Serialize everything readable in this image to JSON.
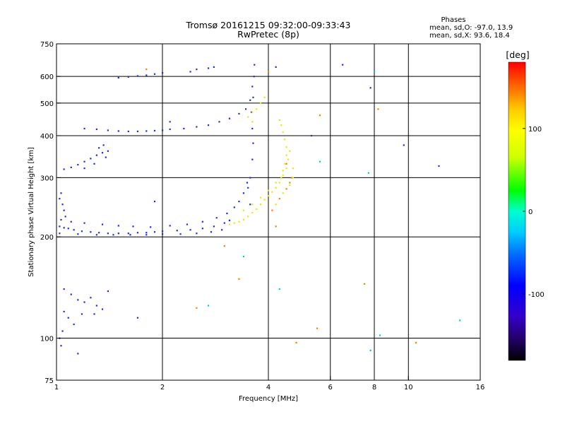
{
  "chart_data": {
    "type": "scatter",
    "title": "Tromsø 20161215 09:32:00-09:33:43",
    "subtitle": "RwPretec (8p)",
    "xlabel": "Frequency [MHz]",
    "ylabel": "Stationary phase Virtual Height [km]",
    "x_scale": "log",
    "y_scale": "log",
    "xlim": [
      1,
      16
    ],
    "ylim": [
      75,
      750
    ],
    "x_ticks": [
      1,
      2,
      4,
      6,
      8,
      10,
      16
    ],
    "x_tick_labels": [
      "1",
      "2",
      "4",
      "6",
      "8",
      "10",
      "16"
    ],
    "y_ticks": [
      75,
      100,
      200,
      300,
      400,
      500,
      600,
      750
    ],
    "y_tick_labels": [
      "75",
      "100",
      "200",
      "300",
      "400",
      "500",
      "600",
      "750"
    ],
    "x_grid": [
      2,
      4,
      6,
      8,
      10
    ],
    "y_grid": [
      100,
      200,
      300,
      400,
      500,
      600
    ],
    "grid": true,
    "stats": {
      "heading": "Phases",
      "line_o": "mean, sd,O: -97.0, 13.9",
      "line_x": "mean, sd,X:  93.6, 18.4"
    },
    "colorbar": {
      "label": "[deg]",
      "range": [
        -180,
        180
      ],
      "ticks": [
        100,
        0,
        -100
      ],
      "tick_labels": [
        "100",
        "0",
        "-100"
      ],
      "colors": [
        "#ff0000",
        "#ff6600",
        "#ffcc00",
        "#ffff00",
        "#ccff00",
        "#00ff00",
        "#00ffcc",
        "#00ccff",
        "#0066ff",
        "#0000ff",
        "#3300cc",
        "#220066",
        "#000000"
      ]
    },
    "series": [
      {
        "phase": -105,
        "color": "#1a2ee0",
        "points": [
          [
            1.02,
            215
          ],
          [
            1.05,
            213
          ],
          [
            1.08,
            212
          ],
          [
            1.12,
            210
          ],
          [
            1.18,
            208
          ],
          [
            1.25,
            207
          ],
          [
            1.32,
            206
          ],
          [
            1.4,
            205
          ],
          [
            1.5,
            205
          ],
          [
            1.6,
            205
          ],
          [
            1.7,
            206
          ],
          [
            1.8,
            206
          ],
          [
            1.9,
            207
          ],
          [
            2.0,
            208
          ],
          [
            2.2,
            209
          ],
          [
            2.4,
            210
          ],
          [
            2.6,
            212
          ],
          [
            2.8,
            215
          ],
          [
            3.0,
            220
          ],
          [
            3.1,
            224
          ],
          [
            1.03,
            225
          ],
          [
            1.1,
            222
          ],
          [
            1.2,
            220
          ],
          [
            1.35,
            218
          ],
          [
            1.5,
            216
          ],
          [
            1.65,
            215
          ],
          [
            1.85,
            214
          ],
          [
            2.1,
            216
          ],
          [
            2.35,
            218
          ],
          [
            2.6,
            222
          ],
          [
            2.85,
            228
          ],
          [
            3.05,
            235
          ],
          [
            3.2,
            245
          ],
          [
            3.3,
            255
          ],
          [
            3.4,
            270
          ],
          [
            3.48,
            290
          ],
          [
            1.02,
            205
          ],
          [
            1.15,
            204
          ],
          [
            1.3,
            203
          ],
          [
            1.45,
            203
          ],
          [
            1.62,
            203
          ],
          [
            1.8,
            203
          ],
          [
            2.0,
            204
          ],
          [
            2.25,
            204
          ],
          [
            2.5,
            205
          ],
          [
            2.75,
            207
          ],
          [
            2.95,
            210
          ],
          [
            1.05,
            318
          ],
          [
            1.1,
            322
          ],
          [
            1.15,
            328
          ],
          [
            1.2,
            335
          ],
          [
            1.25,
            342
          ],
          [
            1.3,
            350
          ],
          [
            1.35,
            356
          ],
          [
            1.4,
            360
          ],
          [
            1.2,
            320
          ],
          [
            1.28,
            330
          ],
          [
            1.38,
            345
          ],
          [
            1.32,
            368
          ],
          [
            1.36,
            375
          ],
          [
            1.2,
            420
          ],
          [
            1.3,
            418
          ],
          [
            1.4,
            415
          ],
          [
            1.5,
            413
          ],
          [
            1.6,
            412
          ],
          [
            1.7,
            412
          ],
          [
            1.8,
            413
          ],
          [
            1.9,
            414
          ],
          [
            2.0,
            415
          ],
          [
            2.1,
            418
          ],
          [
            2.3,
            420
          ],
          [
            2.5,
            425
          ],
          [
            2.7,
            430
          ],
          [
            2.9,
            440
          ],
          [
            3.1,
            450
          ],
          [
            3.3,
            465
          ],
          [
            3.45,
            480
          ],
          [
            3.55,
            510
          ],
          [
            3.6,
            560
          ],
          [
            1.5,
            595
          ],
          [
            1.6,
            598
          ],
          [
            1.7,
            602
          ],
          [
            1.8,
            605
          ],
          [
            1.9,
            610
          ],
          [
            2.0,
            615
          ],
          [
            2.4,
            620
          ],
          [
            2.5,
            630
          ],
          [
            2.7,
            635
          ],
          [
            3.55,
            300
          ],
          [
            3.6,
            340
          ],
          [
            3.62,
            380
          ],
          [
            3.6,
            420
          ],
          [
            3.58,
            470
          ],
          [
            3.62,
            520
          ],
          [
            3.64,
            600
          ],
          [
            3.65,
            650
          ],
          [
            3.55,
            250
          ],
          [
            3.5,
            280
          ],
          [
            1.05,
            140
          ],
          [
            1.1,
            135
          ],
          [
            1.15,
            130
          ],
          [
            1.2,
            128
          ],
          [
            1.25,
            132
          ],
          [
            1.3,
            125
          ],
          [
            1.35,
            122
          ],
          [
            1.4,
            138
          ],
          [
            1.05,
            120
          ],
          [
            1.08,
            115
          ],
          [
            1.12,
            110
          ],
          [
            1.04,
            105
          ],
          [
            1.02,
            100
          ],
          [
            1.03,
            95
          ],
          [
            1.18,
            118
          ],
          [
            1.28,
            118
          ],
          [
            1.02,
            260
          ],
          [
            1.04,
            250
          ],
          [
            1.05,
            240
          ],
          [
            1.03,
            270
          ],
          [
            1.06,
            230
          ],
          [
            1.15,
            90
          ],
          [
            1.7,
            115
          ],
          [
            1.9,
            255
          ],
          [
            2.1,
            440
          ],
          [
            2.8,
            640
          ],
          [
            4.2,
            640
          ],
          [
            6.5,
            650
          ],
          [
            7.8,
            555
          ],
          [
            9.7,
            375
          ],
          [
            5.3,
            400
          ],
          [
            12.2,
            325
          ]
        ]
      },
      {
        "phase": 95,
        "color": "#e6e619",
        "points": [
          [
            3.1,
            218
          ],
          [
            3.2,
            220
          ],
          [
            3.3,
            222
          ],
          [
            3.4,
            225
          ],
          [
            3.5,
            230
          ],
          [
            3.6,
            236
          ],
          [
            3.7,
            242
          ],
          [
            3.8,
            250
          ],
          [
            3.9,
            258
          ],
          [
            4.0,
            265
          ],
          [
            4.1,
            272
          ],
          [
            4.2,
            280
          ],
          [
            4.3,
            290
          ],
          [
            4.35,
            300
          ],
          [
            4.4,
            315
          ],
          [
            4.45,
            330
          ],
          [
            4.5,
            350
          ],
          [
            4.5,
            370
          ],
          [
            4.45,
            390
          ],
          [
            4.4,
            410
          ],
          [
            4.35,
            430
          ],
          [
            4.3,
            445
          ],
          [
            3.4,
            240
          ],
          [
            3.6,
            250
          ],
          [
            3.8,
            262
          ],
          [
            4.0,
            275
          ],
          [
            4.2,
            290
          ],
          [
            4.4,
            305
          ],
          [
            4.5,
            320
          ],
          [
            4.55,
            340
          ],
          [
            4.6,
            360
          ],
          [
            3.7,
            480
          ],
          [
            3.8,
            500
          ],
          [
            3.9,
            520
          ],
          [
            3.6,
            470
          ],
          [
            3.5,
            455
          ],
          [
            3.6,
            440
          ],
          [
            4.2,
            250
          ],
          [
            4.4,
            270
          ],
          [
            4.6,
            285
          ],
          [
            4.7,
            300
          ],
          [
            4.7,
            320
          ]
        ]
      },
      {
        "phase": 60,
        "color": "#ff7a00",
        "points": [
          [
            4.1,
            240
          ],
          [
            4.3,
            260
          ],
          [
            4.5,
            278
          ],
          [
            4.6,
            290
          ],
          [
            4.65,
            300
          ],
          [
            4.5,
            330
          ],
          [
            4.2,
            215
          ],
          [
            3.0,
            188
          ],
          [
            3.3,
            150
          ],
          [
            4.8,
            97
          ],
          [
            5.5,
            107
          ],
          [
            7.5,
            145
          ],
          [
            10.5,
            97
          ],
          [
            2.5,
            123
          ],
          [
            1.8,
            630
          ],
          [
            4.0,
            620
          ],
          [
            5.6,
            460
          ],
          [
            8.2,
            480
          ]
        ]
      },
      {
        "phase": 10,
        "color": "#00c8e6",
        "points": [
          [
            2.7,
            125
          ],
          [
            3.4,
            175
          ],
          [
            4.3,
            140
          ],
          [
            5.6,
            335
          ],
          [
            7.7,
            310
          ],
          [
            7.8,
            92
          ],
          [
            14.0,
            113
          ],
          [
            8.3,
            102
          ],
          [
            8.0,
            620
          ]
        ]
      }
    ]
  }
}
